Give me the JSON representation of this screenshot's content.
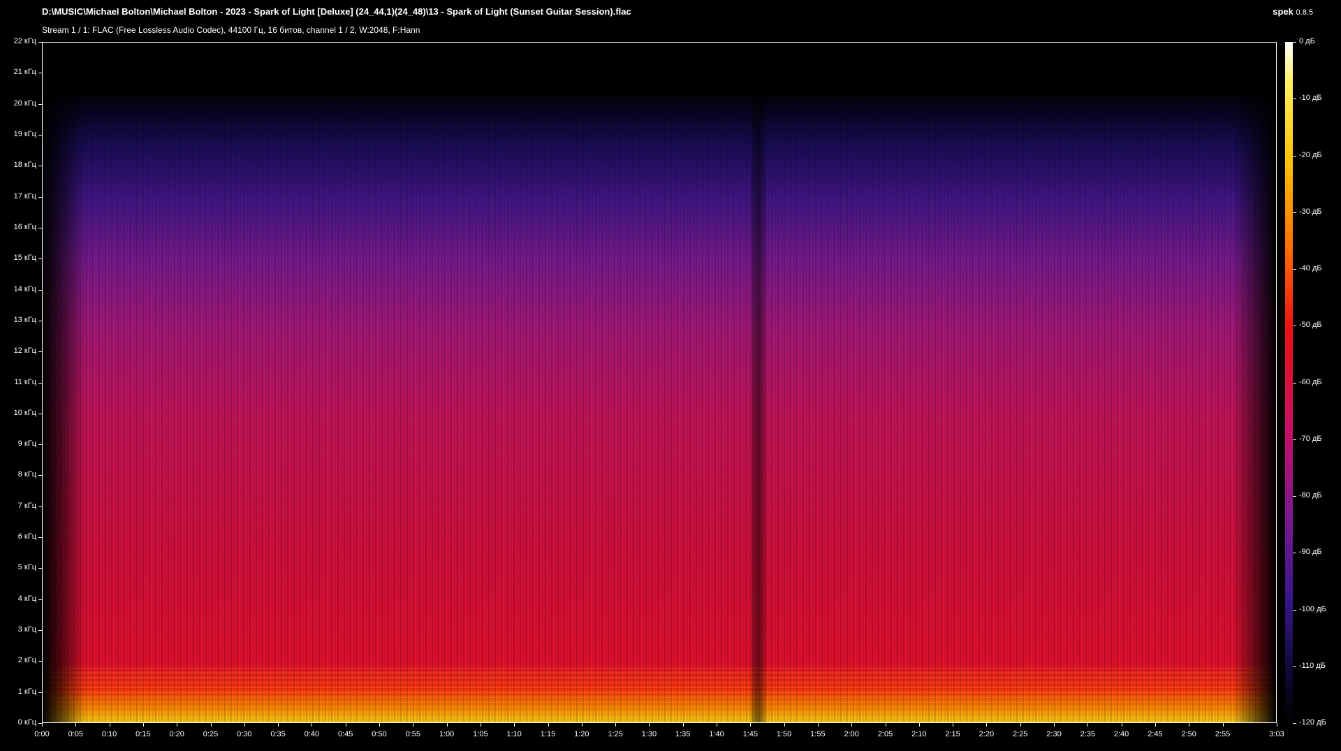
{
  "header": {
    "title": "D:\\MUSIC\\Michael Bolton\\Michael Bolton - 2023 - Spark of Light [Deluxe] (24_44,1)(24_48)\\13 - Spark of Light (Sunset Guitar Session).flac",
    "stream_info": "Stream 1 / 1: FLAC (Free Lossless Audio Codec), 44100 Гц, 16 битов, channel 1 / 2, W:2048, F:Hann",
    "app": "spek",
    "version": "0.8.5"
  },
  "freq_labels": [
    "0 кГц",
    "1 кГц",
    "2 кГц",
    "3 кГц",
    "4 кГц",
    "5 кГц",
    "6 кГц",
    "7 кГц",
    "8 кГц",
    "9 кГц",
    "10 кГц",
    "11 кГц",
    "12 кГц",
    "13 кГц",
    "14 кГц",
    "15 кГц",
    "16 кГц",
    "17 кГц",
    "18 кГц",
    "19 кГц",
    "20 кГц",
    "21 кГц",
    "22 кГц"
  ],
  "time_labels": [
    "0:00",
    "0:05",
    "0:10",
    "0:15",
    "0:20",
    "0:25",
    "0:30",
    "0:35",
    "0:40",
    "0:45",
    "0:50",
    "0:55",
    "1:00",
    "1:05",
    "1:10",
    "1:15",
    "1:20",
    "1:25",
    "1:30",
    "1:35",
    "1:40",
    "1:45",
    "1:50",
    "1:55",
    "2:00",
    "2:05",
    "2:10",
    "2:15",
    "2:20",
    "2:25",
    "2:30",
    "2:35",
    "2:40",
    "2:45",
    "2:50",
    "2:55",
    "3:03"
  ],
  "db_labels": [
    "0 дБ",
    "-10 дБ",
    "-20 дБ",
    "-30 дБ",
    "-40 дБ",
    "-50 дБ",
    "-60 дБ",
    "-70 дБ",
    "-80 дБ",
    "-90 дБ",
    "-100 дБ",
    "-110 дБ",
    "-120 дБ"
  ]
}
